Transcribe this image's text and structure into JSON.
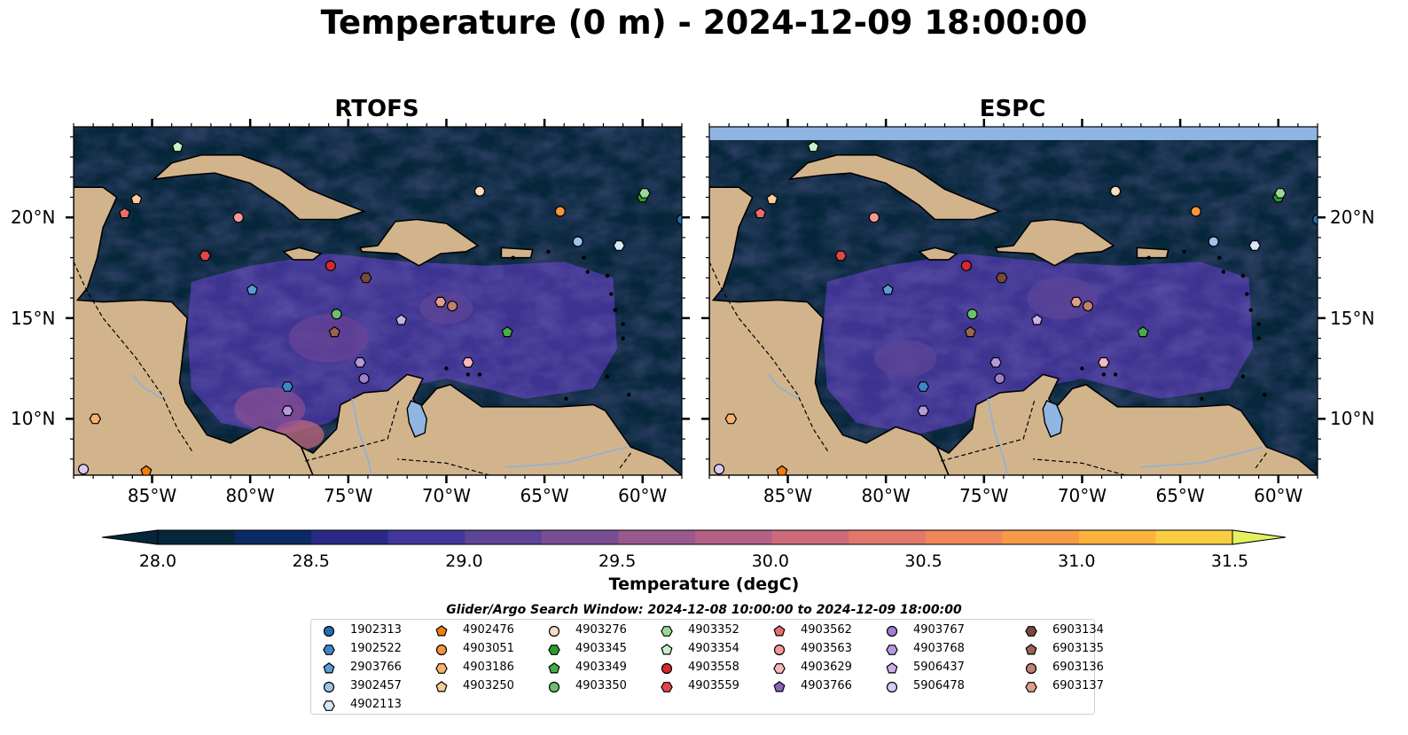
{
  "title": "Temperature (0 m) - 2024-12-09 18:00:00",
  "panels": [
    {
      "title": "RTOFS"
    },
    {
      "title": "ESPC"
    }
  ],
  "lon_labels": [
    "85°W",
    "80°W",
    "75°W",
    "70°W",
    "65°W",
    "60°W"
  ],
  "lat_labels": [
    "20°N",
    "15°N",
    "10°N"
  ],
  "colorbar": {
    "label": "Temperature (degC)",
    "ticks": [
      "28.0",
      "28.5",
      "29.0",
      "29.5",
      "30.0",
      "30.5",
      "31.0",
      "31.5"
    ],
    "colors": [
      "#06263a",
      "#0b2a62",
      "#2a2a86",
      "#433899",
      "#5d4496",
      "#7a4e93",
      "#985a8e",
      "#b36186",
      "#cd6a7a",
      "#e2776c",
      "#f0875a",
      "#f79a47",
      "#fbb33d",
      "#f8cd42",
      "#eee24c",
      "#e3f162"
    ]
  },
  "colors": {
    "land": "#d2b48c",
    "ocean_dark": "#06263a",
    "lake": "#8fb6e2",
    "river": "#9ab0c8"
  },
  "legend": {
    "title": "Glider/Argo Search Window: 2024-12-08 10:00:00 to 2024-12-09 18:00:00",
    "items": [
      {
        "id": "1902313",
        "color": "#1f6fb0",
        "shape": "circle"
      },
      {
        "id": "1902522",
        "color": "#3d87c8",
        "shape": "hexagon"
      },
      {
        "id": "2903766",
        "color": "#5b9bd5",
        "shape": "pentagon"
      },
      {
        "id": "3902457",
        "color": "#9cc3ea",
        "shape": "circle"
      },
      {
        "id": "4902113",
        "color": "#d4e6f7",
        "shape": "hexagon"
      },
      {
        "id": "4902476",
        "color": "#f07f0c",
        "shape": "pentagon"
      },
      {
        "id": "4903051",
        "color": "#f5963a",
        "shape": "circle"
      },
      {
        "id": "4903186",
        "color": "#f8b26e",
        "shape": "hexagon"
      },
      {
        "id": "4903250",
        "color": "#fbcb98",
        "shape": "pentagon"
      },
      {
        "id": "4903276",
        "color": "#fcdcc0",
        "shape": "circle"
      },
      {
        "id": "4903345",
        "color": "#2b9a2b",
        "shape": "hexagon"
      },
      {
        "id": "4903349",
        "color": "#48ad48",
        "shape": "pentagon"
      },
      {
        "id": "4903350",
        "color": "#6cc06c",
        "shape": "circle"
      },
      {
        "id": "4903352",
        "color": "#98d898",
        "shape": "hexagon"
      },
      {
        "id": "4903354",
        "color": "#c8f0c8",
        "shape": "pentagon"
      },
      {
        "id": "4903558",
        "color": "#d42a2a",
        "shape": "circle"
      },
      {
        "id": "4903559",
        "color": "#e04646",
        "shape": "hexagon"
      },
      {
        "id": "4903562",
        "color": "#ec6c6c",
        "shape": "pentagon"
      },
      {
        "id": "4903563",
        "color": "#f69898",
        "shape": "circle"
      },
      {
        "id": "4903629",
        "color": "#f8b8c0",
        "shape": "hexagon"
      },
      {
        "id": "4903766",
        "color": "#8a62c2",
        "shape": "pentagon"
      },
      {
        "id": "4903767",
        "color": "#a07ed0",
        "shape": "circle"
      },
      {
        "id": "4903768",
        "color": "#b598de",
        "shape": "hexagon"
      },
      {
        "id": "5906437",
        "color": "#c8b0ea",
        "shape": "pentagon"
      },
      {
        "id": "5906478",
        "color": "#dcc8f4",
        "shape": "circle"
      },
      {
        "id": "6903134",
        "color": "#7a4a3a",
        "shape": "hexagon"
      },
      {
        "id": "6903135",
        "color": "#9a6450",
        "shape": "pentagon"
      },
      {
        "id": "6903136",
        "color": "#c08070",
        "shape": "circle"
      },
      {
        "id": "6903137",
        "color": "#dca090",
        "shape": "hexagon"
      }
    ]
  },
  "markers": [
    {
      "id": "1902313",
      "lon": -58.0,
      "lat": 19.9
    },
    {
      "id": "3902457",
      "lon": -63.3,
      "lat": 18.8
    },
    {
      "id": "4902113",
      "lon": -61.2,
      "lat": 18.6
    },
    {
      "id": "4903051",
      "lon": -64.2,
      "lat": 20.3
    },
    {
      "id": "4903276",
      "lon": -68.3,
      "lat": 21.3
    },
    {
      "id": "4903345",
      "lon": -60.0,
      "lat": 21.0
    },
    {
      "id": "4903352",
      "lon": -59.9,
      "lat": 21.2
    },
    {
      "id": "4903354",
      "lon": -83.7,
      "lat": 23.5
    },
    {
      "id": "4903250",
      "lon": -85.8,
      "lat": 20.9
    },
    {
      "id": "4903562",
      "lon": -86.4,
      "lat": 20.2
    },
    {
      "id": "4903563",
      "lon": -80.6,
      "lat": 20.0
    },
    {
      "id": "4903559",
      "lon": -82.3,
      "lat": 18.1
    },
    {
      "id": "4903558",
      "lon": -75.9,
      "lat": 17.6
    },
    {
      "id": "2903766",
      "lon": -79.9,
      "lat": 16.4
    },
    {
      "id": "6903134",
      "lon": -74.1,
      "lat": 17.0
    },
    {
      "id": "6903137",
      "lon": -70.3,
      "lat": 15.8
    },
    {
      "id": "6903136",
      "lon": -69.7,
      "lat": 15.6
    },
    {
      "id": "4903350",
      "lon": -75.6,
      "lat": 15.2
    },
    {
      "id": "6903135",
      "lon": -75.7,
      "lat": 14.3
    },
    {
      "id": "5906437",
      "lon": -72.3,
      "lat": 14.9
    },
    {
      "id": "4903349",
      "lon": -66.9,
      "lat": 14.3
    },
    {
      "id": "4903768",
      "lon": -74.4,
      "lat": 12.8
    },
    {
      "id": "4903767",
      "lon": -74.2,
      "lat": 12.0
    },
    {
      "id": "4903629",
      "lon": -68.9,
      "lat": 12.8
    },
    {
      "id": "1902522",
      "lon": -78.1,
      "lat": 11.6
    },
    {
      "id": "4903768",
      "lon": -78.1,
      "lat": 10.4
    },
    {
      "id": "4903186",
      "lon": -87.9,
      "lat": 10.0
    },
    {
      "id": "4902476",
      "lon": -85.3,
      "lat": 7.4
    },
    {
      "id": "5906478",
      "lon": -88.5,
      "lat": 7.5
    }
  ]
}
